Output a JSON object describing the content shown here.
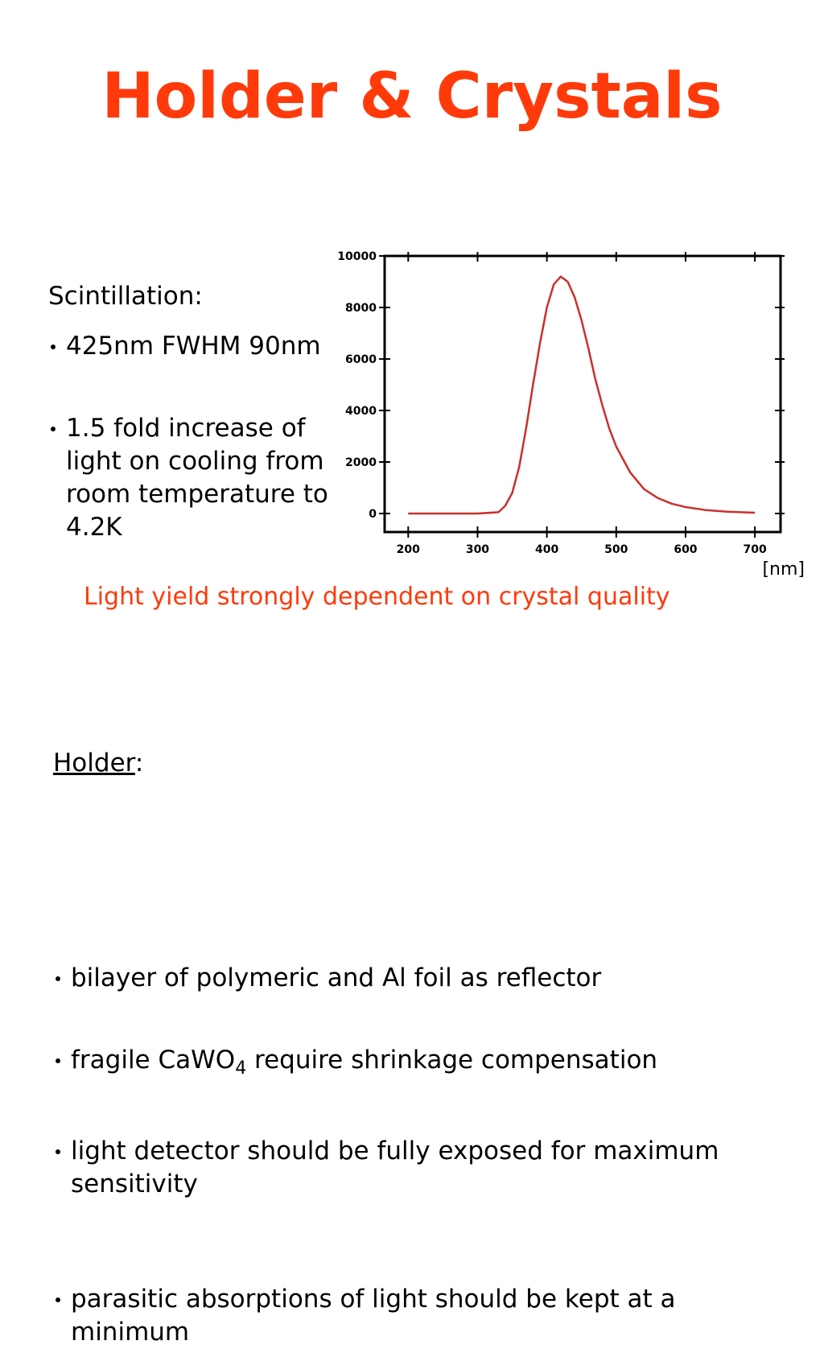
{
  "title": "Holder & Crystals",
  "scintillation": {
    "heading": "Scintillation:",
    "items": [
      "425nm FWHM 90nm",
      "1.5 fold increase of light on cooling from room temperature to 4.2K"
    ]
  },
  "chart_data": {
    "type": "line",
    "x": [
      200,
      250,
      300,
      330,
      340,
      350,
      360,
      370,
      380,
      390,
      400,
      410,
      420,
      430,
      440,
      450,
      460,
      470,
      480,
      490,
      500,
      520,
      540,
      560,
      580,
      600,
      630,
      660,
      700
    ],
    "values": [
      0,
      0,
      0,
      50,
      300,
      800,
      1800,
      3300,
      5000,
      6600,
      8000,
      8900,
      9200,
      9000,
      8400,
      7500,
      6400,
      5200,
      4200,
      3300,
      2600,
      1600,
      950,
      600,
      380,
      250,
      130,
      70,
      30
    ],
    "color": "#c8302c",
    "xlabel": "[nm]",
    "xlim": [
      166,
      737
    ],
    "ylim": [
      -720,
      10000
    ],
    "xticks": [
      200,
      300,
      400,
      500,
      600,
      700
    ],
    "yticks": [
      0,
      2000,
      4000,
      6000,
      8000,
      10000
    ]
  },
  "note": "Light yield strongly dependent on crystal quality",
  "holder": {
    "heading": "Holder",
    "colon": ":",
    "items": [
      "bilayer of polymeric and Al foil as reflector",
      {
        "before": "fragile CaWO",
        "sub": "4",
        "after": " require shrinkage compensation"
      },
      "light detector should be fully exposed for maximum sensitivity",
      "parasitic absorptions of light should be kept at a minimum"
    ]
  }
}
